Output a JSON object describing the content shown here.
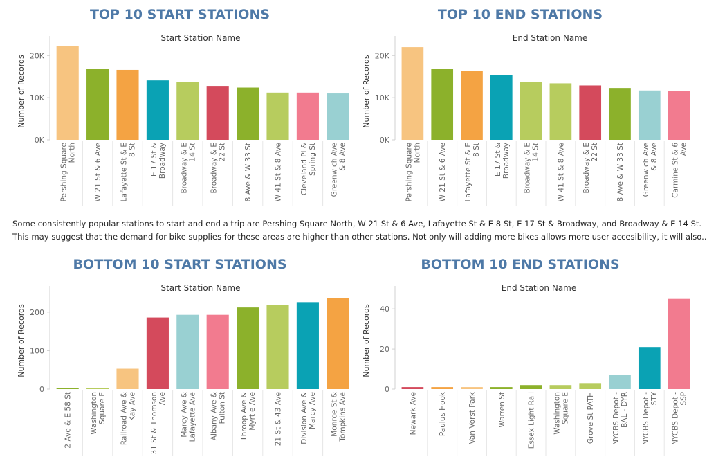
{
  "caption": {
    "line1": "Some consistently popular stations to start and end a trip are Pershing Square  North, W 21 St & 6 Ave, Lafayette St & E 8 St, E 17 St & Broadway, and Broadway & E 14 St.",
    "line2": "This may suggest that the demand for bike supplies for these areas are higher than other stations. Not only will adding more bikes allows more user accesibility, it will also.."
  },
  "chart_data": [
    {
      "type": "bar",
      "title": "TOP 10 START STATIONS",
      "xlabel": "Start Station Name",
      "ylabel": "Number of Records",
      "ylim": [
        0,
        23000
      ],
      "yticks": [
        0,
        10000,
        20000
      ],
      "ytick_labels": [
        "0K",
        "10K",
        "20K"
      ],
      "categories": [
        [
          "Pershing Square",
          "North"
        ],
        [
          "W 21 St & 6 Ave"
        ],
        [
          "Lafayette St & E",
          "8 St"
        ],
        [
          "E 17 St &",
          "Broadway"
        ],
        [
          "Broadway & E",
          "14 St"
        ],
        [
          "Broadway & E",
          "22 St"
        ],
        [
          "8 Ave & W 33 St"
        ],
        [
          "W 41 St & 8 Ave"
        ],
        [
          "Cleveland Pl &",
          "Spring St"
        ],
        [
          "Greenwich Ave",
          "& 8 Ave"
        ]
      ],
      "values": [
        22300,
        16800,
        16600,
        14100,
        13800,
        12800,
        12400,
        11200,
        11200,
        11000
      ],
      "colors": [
        "#f7c480",
        "#8cb12b",
        "#f4a343",
        "#0aa2b4",
        "#b7cc5e",
        "#d44a5c",
        "#8cb12b",
        "#b7cc5e",
        "#f27b8f",
        "#99d0d2"
      ],
      "grid": false
    },
    {
      "type": "bar",
      "title": "TOP 10 END STATIONS",
      "xlabel": "End Station Name",
      "ylabel": "Number of Records",
      "ylim": [
        0,
        23000
      ],
      "yticks": [
        0,
        10000,
        20000
      ],
      "ytick_labels": [
        "0K",
        "10K",
        "20K"
      ],
      "categories": [
        [
          "Pershing Square",
          "North"
        ],
        [
          "W 21 St & 6 Ave"
        ],
        [
          "Lafayette St & E",
          "8 St"
        ],
        [
          "E 17 St &",
          "Broadway"
        ],
        [
          "Broadway & E",
          "14 St"
        ],
        [
          "W 41 St & 8 Ave"
        ],
        [
          "Broadway & E",
          "22 St"
        ],
        [
          "8 Ave & W 33 St"
        ],
        [
          "Greenwich Ave",
          "& 8 Ave"
        ],
        [
          "Carmine St & 6",
          "Ave"
        ]
      ],
      "values": [
        22000,
        16800,
        16400,
        15400,
        13800,
        13400,
        12900,
        12300,
        11700,
        11500
      ],
      "colors": [
        "#f7c480",
        "#8cb12b",
        "#f4a343",
        "#0aa2b4",
        "#b7cc5e",
        "#b7cc5e",
        "#d44a5c",
        "#8cb12b",
        "#99d0d2",
        "#f27b8f"
      ],
      "grid": false
    },
    {
      "type": "bar",
      "title": "BOTTOM 10 START STATIONS",
      "xlabel": "Start Station Name",
      "ylabel": "Number of Records",
      "ylim": [
        0,
        250
      ],
      "yticks": [
        0,
        100,
        200
      ],
      "ytick_labels": [
        "0",
        "100",
        "200"
      ],
      "categories": [
        [
          "2 Ave & E 58 St"
        ],
        [
          "Washington",
          "Square E"
        ],
        [
          "Railroad Ave &",
          "Kay Ave"
        ],
        [
          "31 St & Thomson",
          "Ave"
        ],
        [
          "Marcy Ave &",
          "Lafayette Ave"
        ],
        [
          "Albany Ave &",
          "Fulton St"
        ],
        [
          "Throop Ave &",
          "Myrtle Ave"
        ],
        [
          "21 St & 43 Ave"
        ],
        [
          "Division Ave &",
          "Marcy Ave"
        ],
        [
          "Monroe St &",
          "Tompkins Ave"
        ]
      ],
      "values": [
        2,
        2,
        53,
        186,
        193,
        193,
        212,
        219,
        226,
        236
      ],
      "colors": [
        "#8cb12b",
        "#b7cc5e",
        "#f7c480",
        "#d44a5c",
        "#99d0d2",
        "#f27b8f",
        "#8cb12b",
        "#b7cc5e",
        "#0aa2b4",
        "#f4a343"
      ],
      "grid": false
    },
    {
      "type": "bar",
      "title": "BOTTOM 10 END STATIONS",
      "xlabel": "End Station Name",
      "ylabel": "Number of Records",
      "ylim": [
        0,
        48
      ],
      "yticks": [
        0,
        20,
        40
      ],
      "ytick_labels": [
        "0",
        "20",
        "40"
      ],
      "categories": [
        [
          "Newark Ave"
        ],
        [
          "Paulus Hook"
        ],
        [
          "Van Vorst Park"
        ],
        [
          "Warren St"
        ],
        [
          "Essex Light Rail"
        ],
        [
          "Washington",
          "Square E"
        ],
        [
          "Grove St PATH"
        ],
        [
          "NYCBS Depot -",
          "BAL - DYR"
        ],
        [
          "NYCBS Depot -",
          "STY"
        ],
        [
          "NYCBS Depot -",
          "SSP"
        ]
      ],
      "values": [
        1,
        1,
        1,
        1,
        2,
        2,
        3,
        7,
        21,
        45
      ],
      "colors": [
        "#d44a5c",
        "#f4a343",
        "#f7c480",
        "#8cb12b",
        "#8cb12b",
        "#b7cc5e",
        "#b7cc5e",
        "#99d0d2",
        "#0aa2b4",
        "#f27b8f"
      ],
      "grid": false
    }
  ]
}
